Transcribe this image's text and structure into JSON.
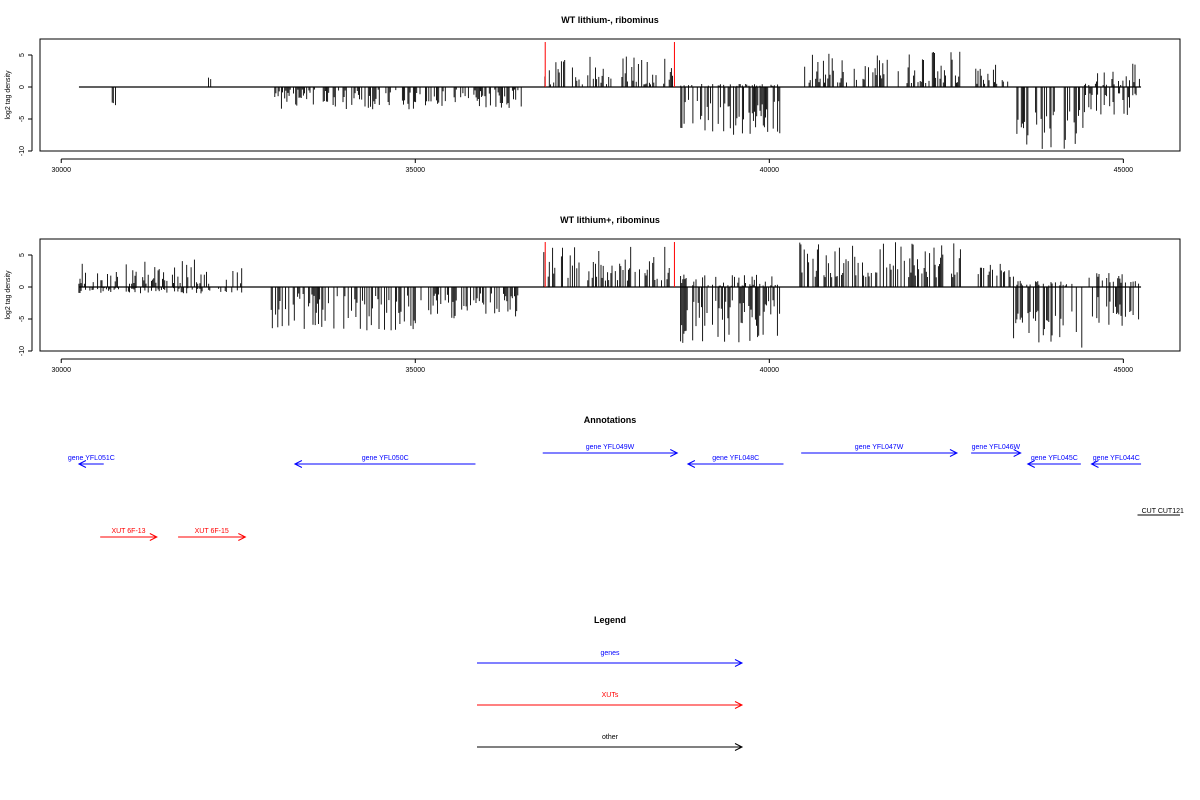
{
  "chart_data": [
    {
      "type": "bar",
      "title": "WT lithium-, ribominus",
      "ylabel": "log2 tag density",
      "xlim": [
        29700,
        45800
      ],
      "ylim": [
        -10,
        7.5
      ],
      "x_ticks": [
        30000,
        35000,
        40000,
        45000
      ],
      "y_ticks": [
        5,
        0,
        -5,
        -10
      ],
      "y_tick_labels": [
        "5",
        "0",
        "-5",
        "-10"
      ],
      "baseline_range": [
        30250,
        45250
      ],
      "markers": {
        "color": "#ff0000",
        "x": [
          36835,
          38660
        ]
      },
      "regions": [
        {
          "x": [
            30720,
            30780
          ],
          "min": 0,
          "max": 0,
          "neg_min": 1.5,
          "neg_max": 3.2
        },
        {
          "x": [
            32080,
            32120
          ],
          "min": 1.2,
          "max": 1.6,
          "neg_min": 0,
          "neg_max": 0
        },
        {
          "x": [
            33000,
            36500
          ],
          "min": 0,
          "max": 0,
          "neg_min": 0.4,
          "neg_max": 3.5
        },
        {
          "x": [
            36800,
            38640
          ],
          "min": 0.4,
          "max": 5,
          "neg_min": 0,
          "neg_max": 0
        },
        {
          "x": [
            38750,
            40150
          ],
          "min": 0,
          "max": 0.5,
          "neg_min": 2,
          "neg_max": 7.5
        },
        {
          "x": [
            40500,
            42700
          ],
          "min": 0.6,
          "max": 5.5,
          "neg_min": 0,
          "neg_max": 0
        },
        {
          "x": [
            42900,
            43400
          ],
          "min": 0.5,
          "max": 3.5,
          "neg_min": 0,
          "neg_max": 0
        },
        {
          "x": [
            43450,
            44450
          ],
          "min": 0,
          "max": 0,
          "neg_min": 3.5,
          "neg_max": 9.8
        },
        {
          "x": [
            44450,
            45250
          ],
          "min": 0.3,
          "max": 3.8,
          "neg_min": 1,
          "neg_max": 4.5
        }
      ]
    },
    {
      "type": "bar",
      "title": "WT lithium+, ribominus",
      "ylabel": "log2 tag density",
      "xlim": [
        29700,
        45800
      ],
      "ylim": [
        -10,
        7.5
      ],
      "x_ticks": [
        30000,
        35000,
        40000,
        45000
      ],
      "y_ticks": [
        5,
        0,
        -5,
        -10
      ],
      "y_tick_labels": [
        "5",
        "0",
        "-5",
        "-10"
      ],
      "baseline_range": [
        30250,
        45250
      ],
      "markers": {
        "color": "#ff0000",
        "x": [
          36835,
          38660
        ]
      },
      "regions": [
        {
          "x": [
            30250,
            32600
          ],
          "min": 0.5,
          "max": 4.3,
          "neg_min": 0,
          "neg_max": 1
        },
        {
          "x": [
            32950,
            35050
          ],
          "min": 0,
          "max": 0,
          "neg_min": 1,
          "neg_max": 6.8
        },
        {
          "x": [
            35050,
            36550
          ],
          "min": 0,
          "max": 0,
          "neg_min": 1,
          "neg_max": 5
        },
        {
          "x": [
            36800,
            38640
          ],
          "min": 1,
          "max": 6.5,
          "neg_min": 0,
          "neg_max": 0
        },
        {
          "x": [
            38700,
            40150
          ],
          "min": 0,
          "max": 2,
          "neg_min": 2,
          "neg_max": 9
        },
        {
          "x": [
            40400,
            42700
          ],
          "min": 1.5,
          "max": 7,
          "neg_min": 0,
          "neg_max": 0
        },
        {
          "x": [
            42950,
            43450
          ],
          "min": 1.5,
          "max": 4,
          "neg_min": 0,
          "neg_max": 0
        },
        {
          "x": [
            43450,
            44500
          ],
          "min": 0,
          "max": 1,
          "neg_min": 3.5,
          "neg_max": 9.5
        },
        {
          "x": [
            44500,
            45250
          ],
          "min": 0.5,
          "max": 2.2,
          "neg_min": 1.5,
          "neg_max": 6.5
        }
      ]
    }
  ],
  "annotations": {
    "title": "Annotations",
    "genes_color": "#0000ff",
    "xuts_color": "#ff0000",
    "other_color": "#000000",
    "genes": [
      {
        "label": "gene YFL051C",
        "start": 30250,
        "end": 30600,
        "strand": "-",
        "row": 1
      },
      {
        "label": "gene YFL050C",
        "start": 33300,
        "end": 35850,
        "strand": "-",
        "row": 1
      },
      {
        "label": "gene YFL049W",
        "start": 36800,
        "end": 38700,
        "strand": "+",
        "row": 0
      },
      {
        "label": "gene YFL048C",
        "start": 38850,
        "end": 40200,
        "strand": "-",
        "row": 1
      },
      {
        "label": "gene YFL047W",
        "start": 40450,
        "end": 42650,
        "strand": "+",
        "row": 0
      },
      {
        "label": "gene YFL046W",
        "start": 42850,
        "end": 43550,
        "strand": "+",
        "row": 0
      },
      {
        "label": "gene YFL045C",
        "start": 43650,
        "end": 44400,
        "strand": "-",
        "row": 1
      },
      {
        "label": "gene YFL044C",
        "start": 44550,
        "end": 45250,
        "strand": "-",
        "row": 1
      }
    ],
    "xuts": [
      {
        "label": "XUT 6F-13",
        "start": 30550,
        "end": 31350,
        "strand": "+"
      },
      {
        "label": "XUT 6F-15",
        "start": 31650,
        "end": 32600,
        "strand": "+"
      }
    ],
    "other": [
      {
        "label": "CUT CUT121",
        "start": 45200,
        "end": 45800,
        "strand": "."
      }
    ]
  },
  "legend": {
    "title": "Legend",
    "items": [
      {
        "label": "genes",
        "color": "#0000ff"
      },
      {
        "label": "XUTs",
        "color": "#ff0000"
      },
      {
        "label": "other",
        "color": "#000000"
      }
    ]
  }
}
